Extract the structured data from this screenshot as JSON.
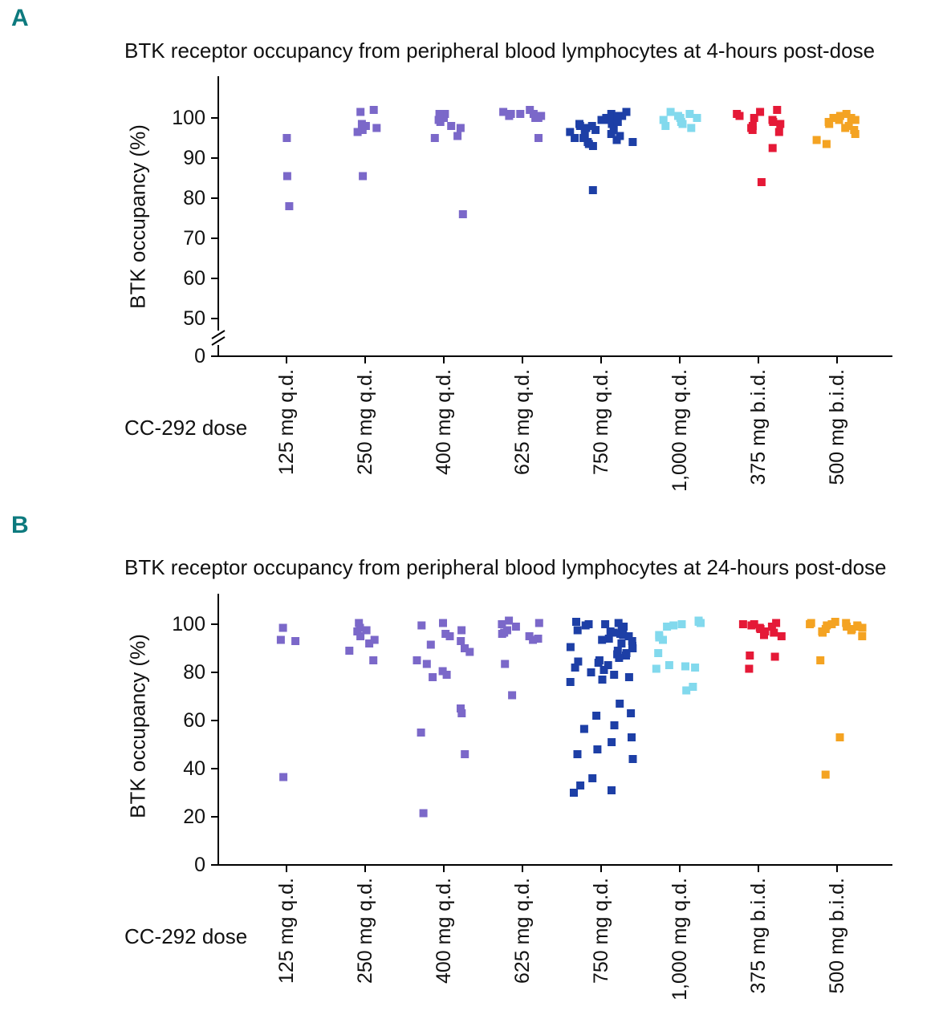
{
  "figure": {
    "panel_labels": [
      "A",
      "B"
    ],
    "panel_label_color": "#0d7a7e"
  },
  "chart_data": [
    {
      "type": "scatter",
      "panel": "A",
      "title": "BTK receptor occupancy from peripheral blood lymphocytes at 4-hours post-dose",
      "xlabel": "CC-292 dose",
      "ylabel": "BTK occupancy (%)",
      "marker": "square",
      "grid": false,
      "legend": "none",
      "yticks": [
        0,
        50,
        60,
        70,
        80,
        90,
        100
      ],
      "ylim": [
        0,
        107
      ],
      "axis_break_between": [
        0,
        50
      ],
      "categories": [
        "125 mg q.d.",
        "250 mg q.d.",
        "400 mg q.d.",
        "625 mg q.d.",
        "750 mg q.d.",
        "1,000 mg q.d.",
        "375 mg b.i.d.",
        "500 mg b.i.d."
      ],
      "groups": [
        {
          "label": "125 mg q.d.",
          "color": "#7b68c9",
          "values": [
            95,
            85.5,
            78
          ]
        },
        {
          "label": "250 mg q.d.",
          "color": "#7b68c9",
          "values": [
            97,
            101.5,
            102,
            97.5,
            98,
            96.5,
            98.5,
            85.5
          ]
        },
        {
          "label": "400 mg q.d.",
          "color": "#7b68c9",
          "values": [
            95,
            97.5,
            100,
            101,
            99,
            100.5,
            98,
            95.5,
            99.5,
            101,
            76
          ]
        },
        {
          "label": "625 mg q.d.",
          "color": "#7b68c9",
          "values": [
            100,
            100.5,
            101,
            100.5,
            101.5,
            102,
            101,
            100,
            95,
            101
          ]
        },
        {
          "label": "750 mg q.d.",
          "color": "#1d3fa6",
          "values": [
            93.5,
            94,
            94.5,
            95,
            95.5,
            96,
            96.5,
            97,
            97.5,
            98,
            98.5,
            99,
            99.5,
            100,
            100.5,
            101,
            101.5,
            97,
            98,
            99,
            100,
            96,
            95,
            94,
            98.5,
            99.5,
            100.5,
            93,
            82
          ]
        },
        {
          "label": "1,000 mg q.d.",
          "color": "#82d9ed",
          "values": [
            98,
            99,
            100,
            100.5,
            101,
            101.5,
            99.5,
            98.5,
            100,
            97.5
          ]
        },
        {
          "label": "375 mg b.i.d.",
          "color": "#e51937",
          "values": [
            96.5,
            97,
            98,
            99,
            100,
            101,
            102,
            100.5,
            99.5,
            98.5,
            97.5,
            101.5,
            92.5,
            84
          ]
        },
        {
          "label": "500 mg b.i.d.",
          "color": "#f4a322",
          "values": [
            96,
            97,
            98,
            99,
            100,
            100.5,
            99.5,
            98.5,
            101,
            97.5,
            93.5,
            94.5,
            99.5,
            100
          ]
        }
      ]
    },
    {
      "type": "scatter",
      "panel": "B",
      "title": "BTK receptor occupancy from peripheral blood lymphocytes at 24-hours post-dose",
      "xlabel": "CC-292 dose",
      "ylabel": "BTK occupancy (%)",
      "marker": "square",
      "grid": false,
      "legend": "none",
      "yticks": [
        0,
        20,
        40,
        60,
        80,
        100
      ],
      "ylim": [
        0,
        105
      ],
      "axis_break_between": null,
      "categories": [
        "125 mg q.d.",
        "250 mg q.d.",
        "400 mg q.d.",
        "625 mg q.d.",
        "750 mg q.d.",
        "1,000 mg q.d.",
        "375 mg b.i.d.",
        "500 mg b.i.d."
      ],
      "groups": [
        {
          "label": "125 mg q.d.",
          "color": "#7b68c9",
          "values": [
            98.5,
            93.5,
            93,
            36.5
          ]
        },
        {
          "label": "250 mg q.d.",
          "color": "#7b68c9",
          "values": [
            100.5,
            98.5,
            97.5,
            97,
            95,
            93.5,
            92,
            89,
            85
          ]
        },
        {
          "label": "400 mg q.d.",
          "color": "#7b68c9",
          "values": [
            100.5,
            99.5,
            97.5,
            96,
            95,
            93,
            91.5,
            90,
            88.5,
            85,
            83.5,
            80.5,
            79,
            78,
            65,
            63,
            55,
            46,
            21.5
          ]
        },
        {
          "label": "625 mg q.d.",
          "color": "#7b68c9",
          "values": [
            101.5,
            100.5,
            100,
            99,
            97.5,
            96.5,
            96,
            95,
            94,
            93.5,
            83.5,
            70.5
          ]
        },
        {
          "label": "750 mg q.d.",
          "color": "#1d3fa6",
          "values": [
            101,
            100.5,
            100,
            100,
            99.5,
            99,
            98.5,
            98,
            97.5,
            97,
            96.5,
            96,
            95.5,
            95,
            94,
            93.5,
            93,
            92,
            91,
            90.5,
            90,
            89,
            88,
            87.5,
            87,
            86,
            85,
            84.5,
            84,
            83,
            82,
            81,
            80,
            79,
            78,
            77,
            76,
            67,
            63,
            62,
            58,
            56.5,
            53,
            51,
            48,
            46,
            44,
            36,
            33,
            31,
            30
          ]
        },
        {
          "label": "1,000 mg q.d.",
          "color": "#82d9ed",
          "values": [
            101.5,
            101,
            100.5,
            100,
            99.5,
            99,
            95.5,
            94.5,
            93.5,
            88,
            83,
            82.5,
            82,
            81.5,
            74,
            72.5
          ]
        },
        {
          "label": "375 mg b.i.d.",
          "color": "#e51937",
          "values": [
            100.5,
            100,
            100,
            99.5,
            99,
            98.5,
            98,
            97,
            96.5,
            95.5,
            95,
            87,
            86.5,
            81.5
          ]
        },
        {
          "label": "500 mg b.i.d.",
          "color": "#f4a322",
          "values": [
            101,
            100.5,
            100.5,
            100,
            100,
            99.5,
            99,
            99,
            98.5,
            98,
            98,
            97.5,
            97,
            96.5,
            95,
            99.5,
            85,
            53,
            37.5
          ]
        }
      ]
    }
  ]
}
